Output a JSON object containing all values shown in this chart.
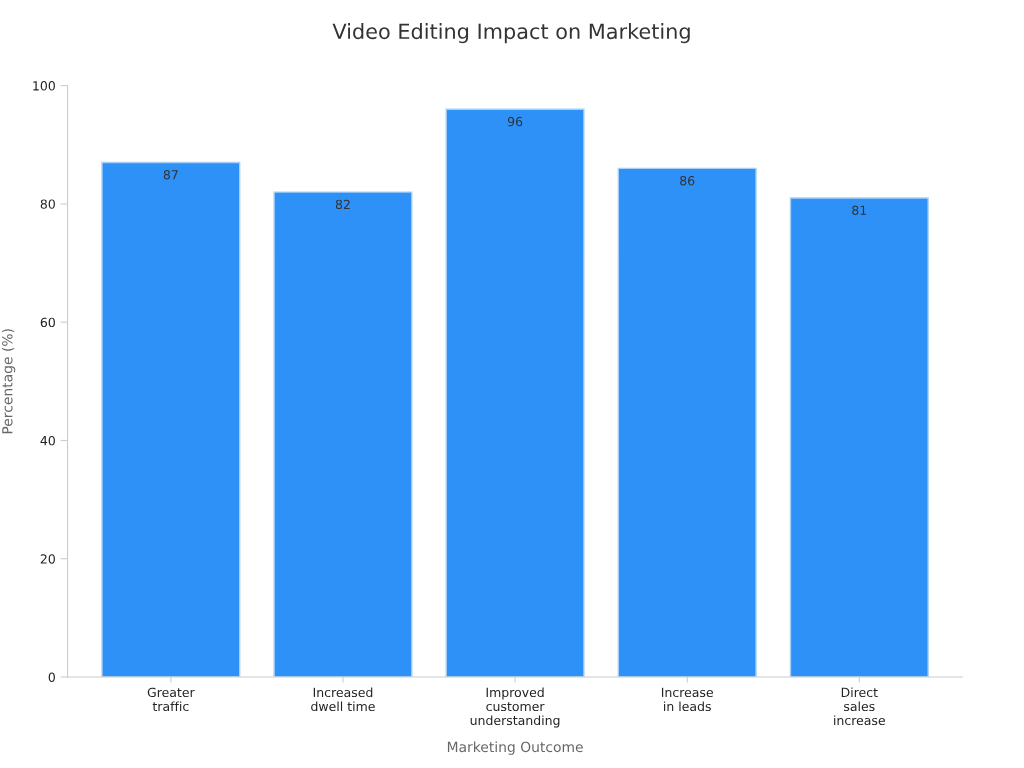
{
  "chart_data": {
    "type": "bar",
    "title": "Video Editing Impact on Marketing",
    "xlabel": "Marketing Outcome",
    "ylabel": "Percentage (%)",
    "categories": [
      "Greater\ntraffic",
      "Increased\ndwell time",
      "Improved\ncustomer\nunderstanding",
      "Increase\nin leads",
      "Direct\nsales\nincrease"
    ],
    "values": [
      87,
      82,
      96,
      86,
      81
    ],
    "color": "#2e91f7",
    "ylim": [
      0,
      100
    ],
    "yticks": [
      0,
      20,
      40,
      60,
      80,
      100
    ],
    "grid": false,
    "data_labels": true
  }
}
